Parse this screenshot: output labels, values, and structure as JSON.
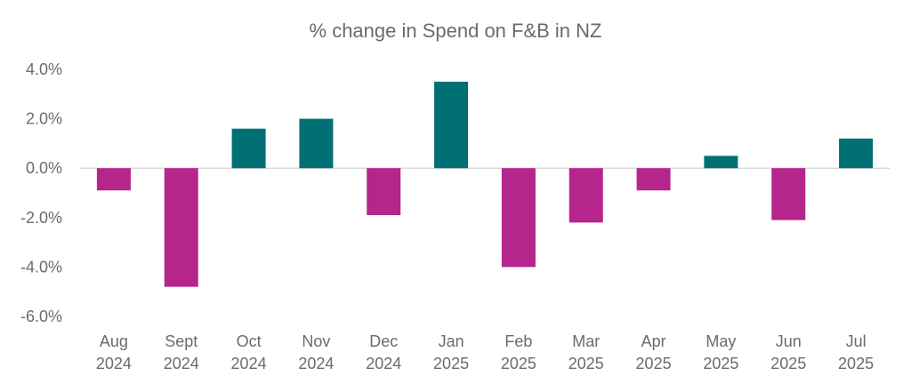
{
  "chart_data": {
    "type": "bar",
    "title": "% change in Spend on F&B in NZ",
    "xlabel": "",
    "ylabel": "",
    "categories": [
      [
        "Aug",
        "2024"
      ],
      [
        "Sept",
        "2024"
      ],
      [
        "Oct",
        "2024"
      ],
      [
        "Nov",
        "2024"
      ],
      [
        "Dec",
        "2024"
      ],
      [
        "Jan",
        "2025"
      ],
      [
        "Feb",
        "2025"
      ],
      [
        "Mar",
        "2025"
      ],
      [
        "Apr",
        "2025"
      ],
      [
        "May",
        "2025"
      ],
      [
        "Jun",
        "2025"
      ],
      [
        "Jul",
        "2025"
      ]
    ],
    "values": [
      -0.9,
      -4.8,
      1.6,
      2.0,
      -1.9,
      3.5,
      -4.0,
      -2.2,
      -0.9,
      0.5,
      -2.1,
      1.2
    ],
    "ylim": [
      -6.0,
      4.0
    ],
    "yticks": [
      "4.0%",
      "2.0%",
      "0.0%",
      "-2.0%",
      "-4.0%",
      "-6.0%"
    ],
    "ytick_values": [
      4,
      2,
      0,
      -2,
      -4,
      -6
    ],
    "grid": false,
    "legend": "none",
    "colors": {
      "positive": "#007075",
      "negative": "#B5258C",
      "axis": "#d9d9d9"
    }
  }
}
